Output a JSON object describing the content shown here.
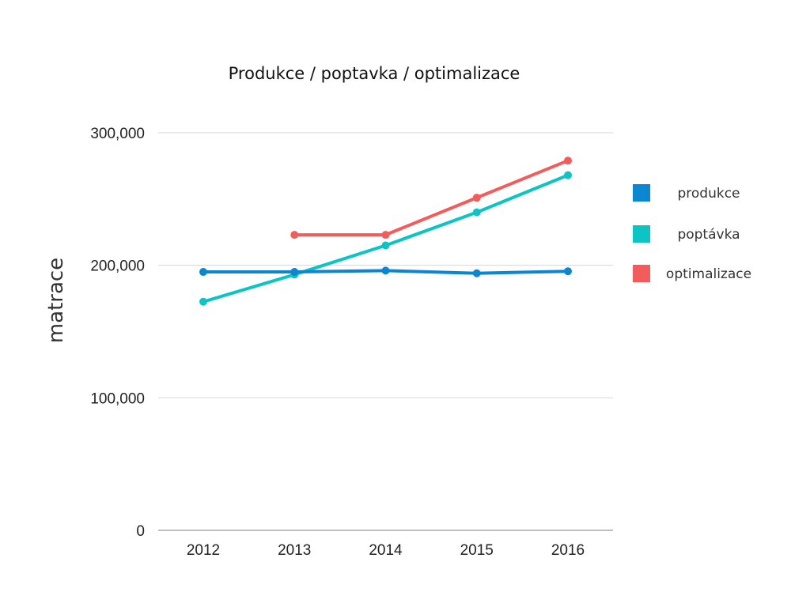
{
  "chart_data": {
    "type": "line",
    "title": "Produkce / poptavka / optimalizace",
    "xlabel": "",
    "ylabel": "matrace",
    "categories": [
      "2012",
      "2013",
      "2014",
      "2015",
      "2016"
    ],
    "ylim": [
      0,
      300000
    ],
    "yticks": [
      0,
      100000,
      200000,
      300000
    ],
    "ytick_labels": [
      "0",
      "100,000",
      "200,000",
      "300,000"
    ],
    "grid": true,
    "legend_position": "right",
    "series": [
      {
        "name": "produkce",
        "color": "#0b86d0",
        "values": [
          195000,
          195000,
          196000,
          194000,
          195500
        ]
      },
      {
        "name": "poptávka",
        "color": "#0cc4c4",
        "values": [
          172500,
          193000,
          215000,
          240000,
          268000
        ]
      },
      {
        "name": "optimalizace",
        "color": "#f45b5b",
        "values": [
          null,
          223000,
          223000,
          251000,
          279000
        ]
      }
    ]
  }
}
